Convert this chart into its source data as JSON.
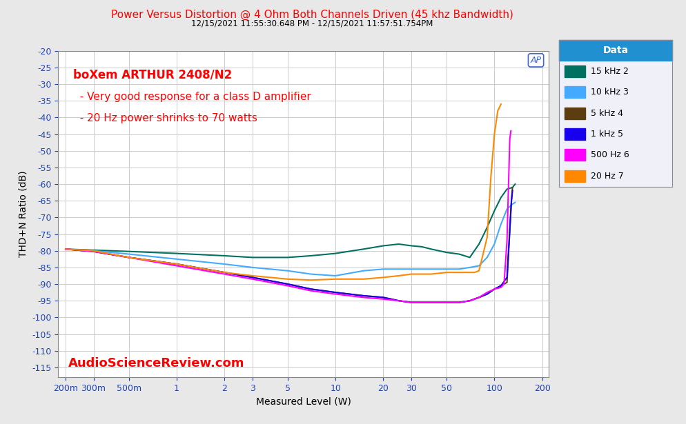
{
  "title_line1": "Power Versus Distortion @ 4 Ohm Both Channels Driven (45 khz Bandwidth)",
  "title_line2": "12/15/2021 11:55:30.648 PM - 12/15/2021 11:57:51.754PM",
  "xlabel": "Measured Level (W)",
  "ylabel": "THD+N Ratio (dB)",
  "xlim": [
    0.18,
    220
  ],
  "ymin": -20,
  "ymax": -118,
  "yticks": [
    -20,
    -25,
    -30,
    -35,
    -40,
    -45,
    -50,
    -55,
    -60,
    -65,
    -70,
    -75,
    -80,
    -85,
    -90,
    -95,
    -100,
    -105,
    -110,
    -115
  ],
  "xticks": [
    0.2,
    0.3,
    0.5,
    1,
    2,
    3,
    5,
    10,
    20,
    30,
    50,
    100,
    200
  ],
  "xtick_labels": [
    "200m",
    "300m",
    "500m",
    "1",
    "2",
    "3",
    "5",
    "10",
    "20",
    "30",
    "50",
    "100",
    "200"
  ],
  "annotation_title": "boXem ARTHUR 2408/N2",
  "annotation_line1": "  - Very good response for a class D amplifier",
  "annotation_line2": "  - 20 Hz power shrinks to 70 watts",
  "watermark": "AudioScienceReview.com",
  "legend_title": "Data",
  "legend_header_color": "#2090d0",
  "background_color": "#e8e8e8",
  "plot_bg_color": "#ffffff",
  "grid_color": "#cccccc",
  "title_color": "#ff0000",
  "annotation_color": "#ff0000",
  "watermark_color": "#ff0000",
  "ap_logo_color": "#4466cc",
  "series": [
    {
      "label": "15 kHz 2",
      "color": "#007060",
      "x": [
        0.2,
        0.3,
        0.5,
        1.0,
        2.0,
        3.0,
        5.0,
        7.0,
        10.0,
        15.0,
        20.0,
        25.0,
        30.0,
        35.0,
        40.0,
        50.0,
        60.0,
        70.0,
        80.0,
        90.0,
        100.0,
        110.0,
        120.0,
        130.0,
        135.0
      ],
      "y": [
        -79.5,
        -79.8,
        -80.2,
        -80.8,
        -81.5,
        -82.0,
        -82.0,
        -81.5,
        -80.8,
        -79.5,
        -78.5,
        -78.0,
        -78.5,
        -78.8,
        -79.5,
        -80.5,
        -81.0,
        -82.0,
        -78.0,
        -73.0,
        -68.0,
        -64.0,
        -61.5,
        -61.0,
        -60.0
      ]
    },
    {
      "label": "10 kHz 3",
      "color": "#44aaff",
      "x": [
        0.2,
        0.3,
        0.5,
        1.0,
        2.0,
        3.0,
        5.0,
        7.0,
        10.0,
        15.0,
        20.0,
        25.0,
        30.0,
        35.0,
        40.0,
        50.0,
        60.0,
        70.0,
        80.0,
        90.0,
        100.0,
        110.0,
        120.0,
        130.0,
        135.0
      ],
      "y": [
        -79.5,
        -80.0,
        -81.0,
        -82.5,
        -84.0,
        -85.0,
        -86.0,
        -87.0,
        -87.5,
        -86.0,
        -85.5,
        -85.5,
        -85.5,
        -85.5,
        -85.5,
        -85.5,
        -85.5,
        -85.0,
        -84.5,
        -82.0,
        -78.0,
        -72.0,
        -67.5,
        -66.0,
        -65.5
      ]
    },
    {
      "label": "5 kHz 4",
      "color": "#5c3d10",
      "x": [
        0.2,
        0.3,
        0.5,
        1.0,
        2.0,
        3.0,
        5.0,
        7.0,
        10.0,
        15.0,
        20.0,
        25.0,
        30.0,
        35.0,
        40.0,
        50.0,
        60.0,
        70.0,
        80.0,
        90.0,
        100.0,
        110.0,
        120.0,
        128.0,
        130.0
      ],
      "y": [
        -79.5,
        -80.2,
        -82.0,
        -84.0,
        -86.5,
        -88.0,
        -90.0,
        -91.5,
        -92.5,
        -93.5,
        -94.0,
        -95.0,
        -95.5,
        -95.5,
        -95.5,
        -95.5,
        -95.5,
        -95.0,
        -94.0,
        -93.0,
        -91.5,
        -90.5,
        -89.5,
        -65.0,
        -61.0
      ]
    },
    {
      "label": "1 kHz 5",
      "color": "#1800ee",
      "x": [
        0.2,
        0.3,
        0.5,
        1.0,
        2.0,
        3.0,
        5.0,
        7.0,
        10.0,
        15.0,
        20.0,
        25.0,
        30.0,
        35.0,
        40.0,
        50.0,
        60.0,
        70.0,
        80.0,
        90.0,
        100.0,
        110.0,
        120.0,
        128.0,
        130.0
      ],
      "y": [
        -79.5,
        -80.2,
        -82.0,
        -84.0,
        -86.5,
        -88.0,
        -90.0,
        -91.5,
        -92.5,
        -93.5,
        -94.0,
        -95.0,
        -95.5,
        -95.5,
        -95.5,
        -95.5,
        -95.5,
        -95.0,
        -94.0,
        -93.0,
        -91.5,
        -90.5,
        -88.0,
        -65.0,
        -62.0
      ]
    },
    {
      "label": "500 Hz 6",
      "color": "#ff00ff",
      "x": [
        0.2,
        0.3,
        0.5,
        1.0,
        2.0,
        3.0,
        5.0,
        7.0,
        10.0,
        15.0,
        20.0,
        25.0,
        30.0,
        35.0,
        40.0,
        50.0,
        60.0,
        70.0,
        80.0,
        90.0,
        100.0,
        110.0,
        115.0,
        120.0,
        125.0,
        127.0
      ],
      "y": [
        -79.5,
        -80.2,
        -82.0,
        -84.5,
        -87.0,
        -88.5,
        -90.5,
        -92.0,
        -93.0,
        -94.0,
        -94.5,
        -95.0,
        -95.5,
        -95.5,
        -95.5,
        -95.5,
        -95.5,
        -95.0,
        -94.0,
        -92.5,
        -91.5,
        -91.0,
        -90.0,
        -77.0,
        -46.5,
        -44.0
      ]
    },
    {
      "label": "20 Hz 7",
      "color": "#ff8800",
      "x": [
        0.2,
        0.3,
        0.5,
        1.0,
        2.0,
        3.0,
        5.0,
        7.0,
        10.0,
        15.0,
        20.0,
        25.0,
        30.0,
        35.0,
        40.0,
        50.0,
        60.0,
        70.0,
        75.0,
        80.0,
        90.0,
        95.0,
        100.0,
        105.0,
        110.0
      ],
      "y": [
        -79.5,
        -80.0,
        -82.0,
        -84.0,
        -86.5,
        -87.5,
        -88.5,
        -88.8,
        -88.5,
        -88.5,
        -88.0,
        -87.5,
        -87.0,
        -87.0,
        -87.0,
        -86.5,
        -86.5,
        -86.5,
        -86.5,
        -86.0,
        -76.0,
        -58.0,
        -45.0,
        -38.0,
        -36.0
      ]
    }
  ]
}
